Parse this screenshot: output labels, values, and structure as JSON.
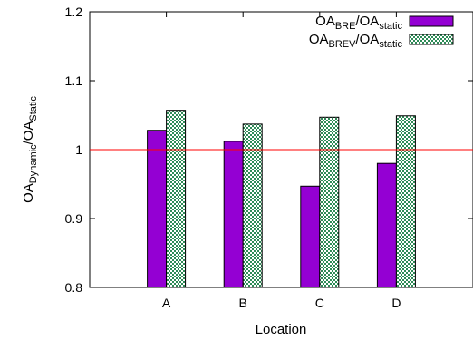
{
  "chart_data": {
    "type": "bar",
    "categories": [
      "A",
      "B",
      "C",
      "D"
    ],
    "series": [
      {
        "name": "OA_BRE/OA_static",
        "name_parts": [
          "OA",
          "BRE",
          "/OA",
          "static"
        ],
        "values": [
          1.028,
          1.012,
          0.947,
          0.98
        ],
        "color": "#9400d3",
        "fill": "solid"
      },
      {
        "name": "OA_BREV/OA_static",
        "name_parts": [
          "OA",
          "BREV",
          "/OA",
          "static"
        ],
        "values": [
          1.057,
          1.037,
          1.047,
          1.049
        ],
        "color": "#2e8b57",
        "fill": "checker"
      }
    ],
    "xlabel": "Location",
    "ylabel_parts": [
      "OA",
      "Dynamic",
      "/OA",
      "Static"
    ],
    "ylim": [
      0.8,
      1.2
    ],
    "yticks": [
      "0.8",
      "0.9",
      "1",
      "1.1",
      "1.2"
    ],
    "reference_line": {
      "y": 1.0,
      "color": "#ff0000"
    },
    "grid": false,
    "legend": "top-right"
  }
}
